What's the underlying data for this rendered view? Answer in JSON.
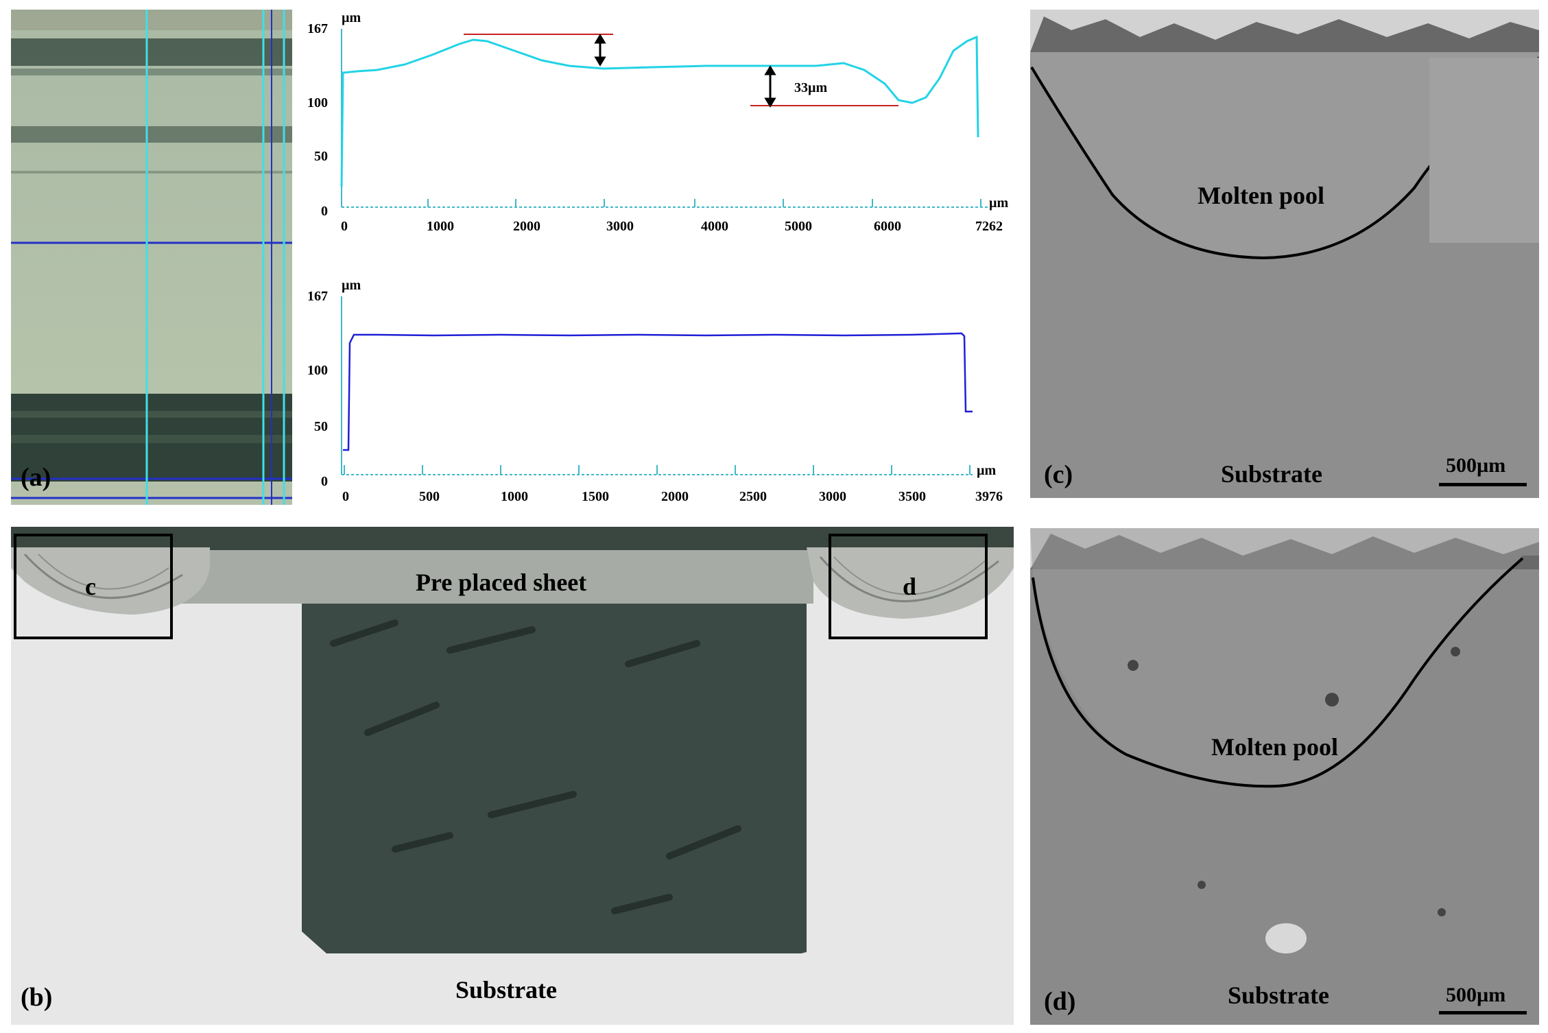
{
  "panel_labels": {
    "a": "(a)",
    "b": "(b)",
    "c": "(c)",
    "d": "(d)"
  },
  "profile_top": {
    "y_unit": "µm",
    "x_unit": "µm",
    "y_ticks": [
      "167",
      "100",
      "50",
      "0"
    ],
    "x_ticks": [
      "0",
      "1000",
      "2000",
      "3000",
      "4000",
      "5000",
      "6000",
      "7262"
    ],
    "annotation": "33µm",
    "color": "#22d3e6"
  },
  "profile_bottom": {
    "y_unit": "µm",
    "x_unit": "µm",
    "y_ticks": [
      "167",
      "100",
      "50",
      "0"
    ],
    "x_ticks": [
      "0",
      "500",
      "1000",
      "1500",
      "2000",
      "2500",
      "3000",
      "3500",
      "3976"
    ],
    "color": "#1f1fd6"
  },
  "panel_b": {
    "sheet_label": "Pre placed sheet",
    "substrate_label": "Substrate",
    "box_c": "c",
    "box_d": "d"
  },
  "panel_c": {
    "pool_label": "Molten pool",
    "substrate_label": "Substrate",
    "scale": "500µm"
  },
  "panel_d": {
    "pool_label": "Molten pool",
    "substrate_label": "Substrate",
    "scale": "500µm"
  }
}
